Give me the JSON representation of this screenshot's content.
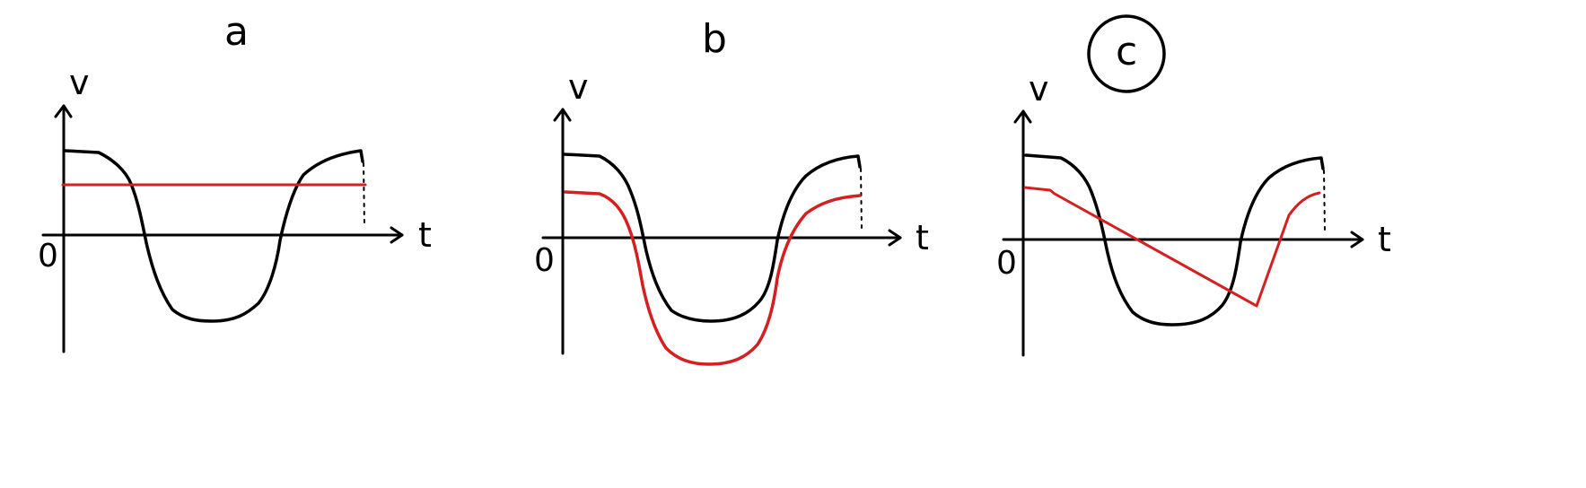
{
  "panels": [
    {
      "id": "a",
      "label": "a",
      "circled": false,
      "y_axis_label": "v",
      "x_axis_label": "t",
      "origin_label": "0",
      "red_curve": "horizontal-line"
    },
    {
      "id": "b",
      "label": "b",
      "circled": false,
      "y_axis_label": "v",
      "x_axis_label": "t",
      "origin_label": "0",
      "red_curve": "scaled-shifted-copy"
    },
    {
      "id": "c",
      "label": "c",
      "circled": true,
      "y_axis_label": "v",
      "x_axis_label": "t",
      "origin_label": "0",
      "red_curve": "piecewise-linear"
    }
  ],
  "colors": {
    "ink": "#000000",
    "red": "#d42020",
    "background": "#ffffff"
  }
}
